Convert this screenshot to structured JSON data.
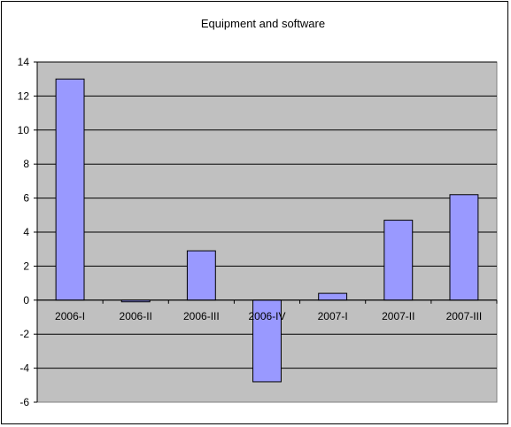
{
  "chart_data": {
    "type": "bar",
    "title": "Equipment and software",
    "categories": [
      "2006-I",
      "2006-II",
      "2006-III",
      "2006-IV",
      "2007-I",
      "2007-II",
      "2007-III"
    ],
    "series": [
      {
        "values": [
          13.0,
          -0.1,
          2.9,
          -4.8,
          0.4,
          4.7,
          6.2
        ]
      }
    ],
    "ylim": [
      -6,
      14
    ],
    "yticks": [
      14,
      12,
      10,
      8,
      6,
      4,
      2,
      0,
      -2,
      -4,
      -6
    ],
    "grid": true,
    "legend": "none",
    "colors": {
      "plot_background": "#c0c0c0",
      "bar_fill": "#9999ff",
      "bar_stroke": "#000000",
      "grid": "#000000"
    }
  }
}
